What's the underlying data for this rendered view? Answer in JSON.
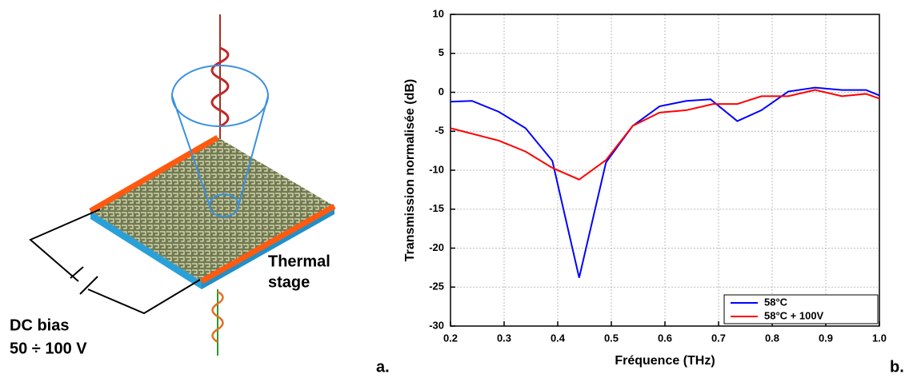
{
  "diagram": {
    "stage_label": [
      "Thermal",
      "stage"
    ],
    "bias_label": [
      "DC bias",
      "50 ÷ 100 V"
    ]
  },
  "panel_labels": [
    "a.",
    "b."
  ],
  "chart_data": {
    "type": "line",
    "xlabel": "Fréquence (THz)",
    "ylabel": "Transmission normalisée (dB)",
    "xlim": [
      0.2,
      1.0
    ],
    "ylim": [
      -30,
      10
    ],
    "xticks": [
      0.2,
      0.3,
      0.4,
      0.5,
      0.6,
      0.7,
      0.8,
      0.9,
      {
        "value": 1,
        "label": "1.0"
      }
    ],
    "yticks": [
      -30,
      -25,
      -20,
      -15,
      -10,
      -5,
      0,
      5,
      10
    ],
    "grid": true,
    "legend": "lower right",
    "series": [
      {
        "name": "58°C",
        "color": "#0000ff",
        "x": [
          0.2,
          0.24,
          0.29,
          0.34,
          0.39,
          0.44,
          0.49,
          0.54,
          0.59,
          0.64,
          0.685,
          0.735,
          0.78,
          0.83,
          0.88,
          0.93,
          0.975,
          1.0
        ],
        "values": [
          -1.2,
          -1.1,
          -2.5,
          -4.6,
          -8.8,
          -23.8,
          -9.0,
          -4.3,
          -1.8,
          -1.1,
          -0.9,
          -3.7,
          -2.3,
          0.1,
          0.6,
          0.3,
          0.3,
          -0.4
        ]
      },
      {
        "name": "58°C + 100V",
        "color": "#ff0000",
        "x": [
          0.2,
          0.29,
          0.34,
          0.39,
          0.44,
          0.49,
          0.54,
          0.59,
          0.64,
          0.69,
          0.735,
          0.78,
          0.83,
          0.88,
          0.93,
          0.975,
          1.0
        ],
        "values": [
          -4.6,
          -6.2,
          -7.6,
          -9.7,
          -11.2,
          -8.7,
          -4.3,
          -2.6,
          -2.3,
          -1.5,
          -1.5,
          -0.5,
          -0.5,
          0.3,
          -0.5,
          -0.2,
          -0.8
        ]
      }
    ]
  }
}
